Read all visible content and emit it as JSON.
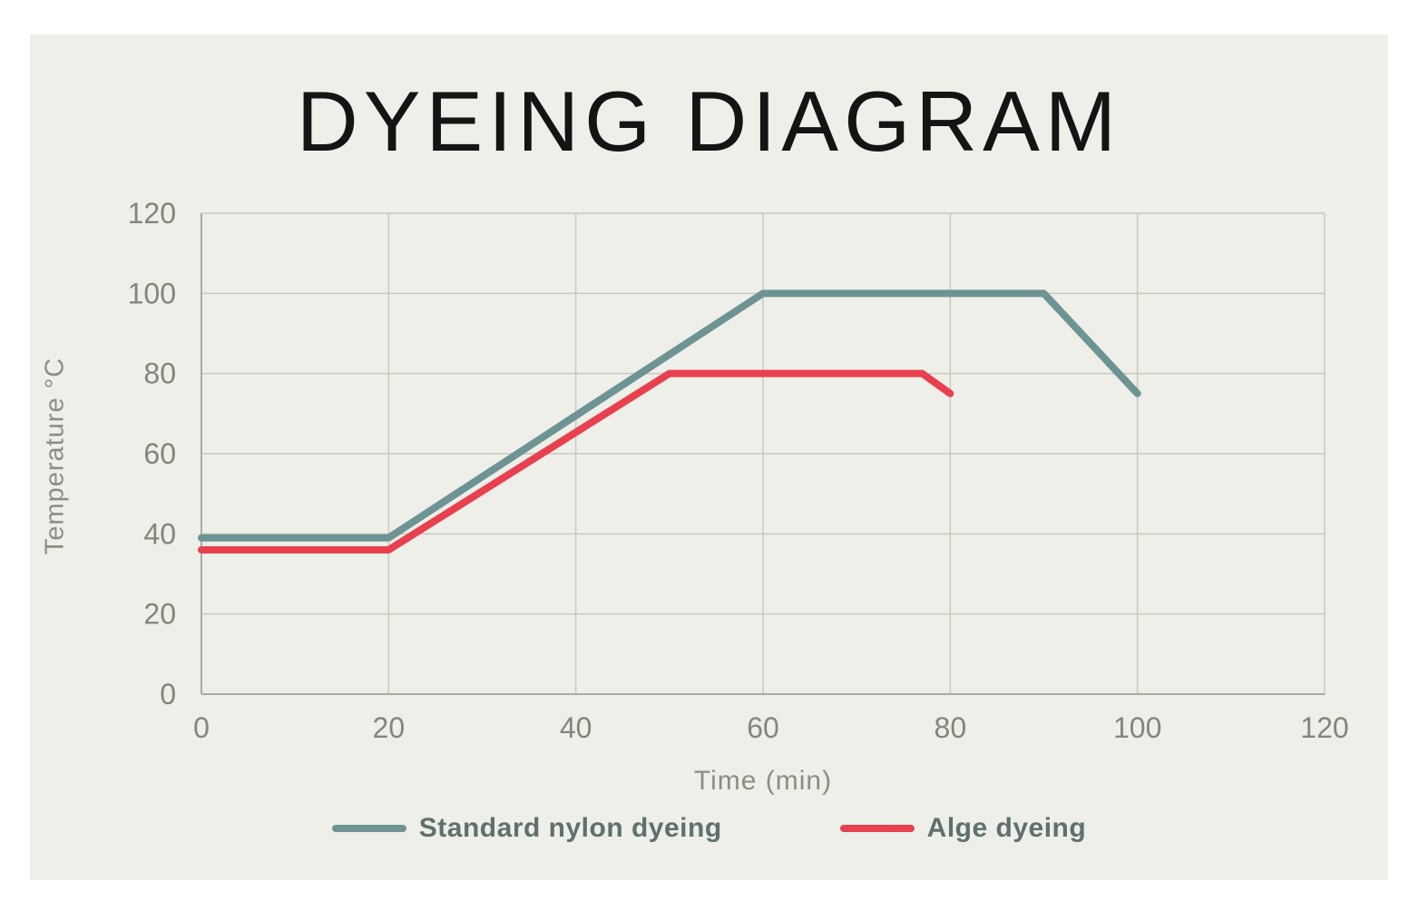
{
  "chart_data": {
    "type": "line",
    "title": "DYEING DIAGRAM",
    "xlabel": "Time (min)",
    "ylabel": "Temperature °C",
    "xlim": [
      0,
      120
    ],
    "ylim": [
      0,
      120
    ],
    "x_ticks": [
      0,
      20,
      40,
      60,
      80,
      100,
      120
    ],
    "y_ticks": [
      0,
      20,
      40,
      60,
      80,
      100,
      120
    ],
    "grid": true,
    "legend_position": "bottom",
    "series": [
      {
        "name": "Standard nylon dyeing",
        "color": "#6e9394",
        "points": [
          [
            0,
            39
          ],
          [
            20,
            39
          ],
          [
            60,
            100
          ],
          [
            90,
            100
          ],
          [
            100,
            75
          ]
        ]
      },
      {
        "name": "Alge dyeing",
        "color": "#e8404f",
        "points": [
          [
            0,
            36
          ],
          [
            20,
            36
          ],
          [
            50,
            80
          ],
          [
            77,
            80
          ],
          [
            80,
            75
          ]
        ]
      }
    ],
    "colors": {
      "plot_background": "#edefe8",
      "grid_line": "#c7cabf",
      "axis_line": "#a9aca1",
      "tick_label": "#83867c",
      "title": "#141414"
    }
  }
}
